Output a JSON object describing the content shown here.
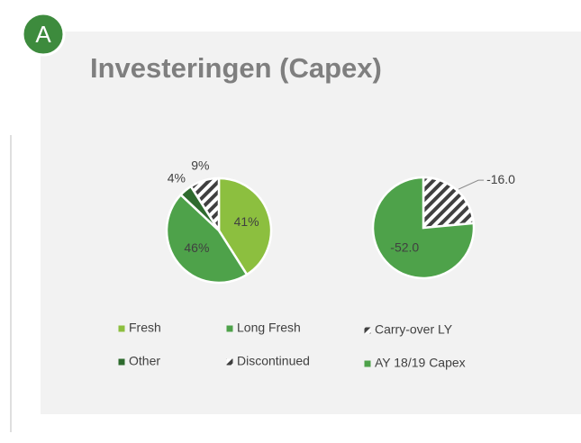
{
  "badge": "A",
  "title": "Investeringen (Capex)",
  "chart_data": [
    {
      "type": "pie",
      "categories": [
        "Fresh",
        "Long Fresh",
        "Other",
        "Discontinued"
      ],
      "values": [
        41,
        46,
        4,
        9
      ],
      "value_labels": [
        "41%",
        "46%",
        "4%",
        "9%"
      ],
      "colors": [
        "#8cbf3f",
        "#4ea24a",
        "#2e6b2e",
        "#404040"
      ],
      "hatched": [
        false,
        false,
        false,
        true
      ]
    },
    {
      "type": "pie",
      "categories": [
        "Carry-over LY",
        "AY 18/19 Capex"
      ],
      "values": [
        -16.0,
        -52.0
      ],
      "value_labels": [
        "-16.0",
        "-52.0"
      ],
      "colors": [
        "#404040",
        "#4ea24a"
      ],
      "hatched": [
        true,
        false
      ]
    }
  ]
}
